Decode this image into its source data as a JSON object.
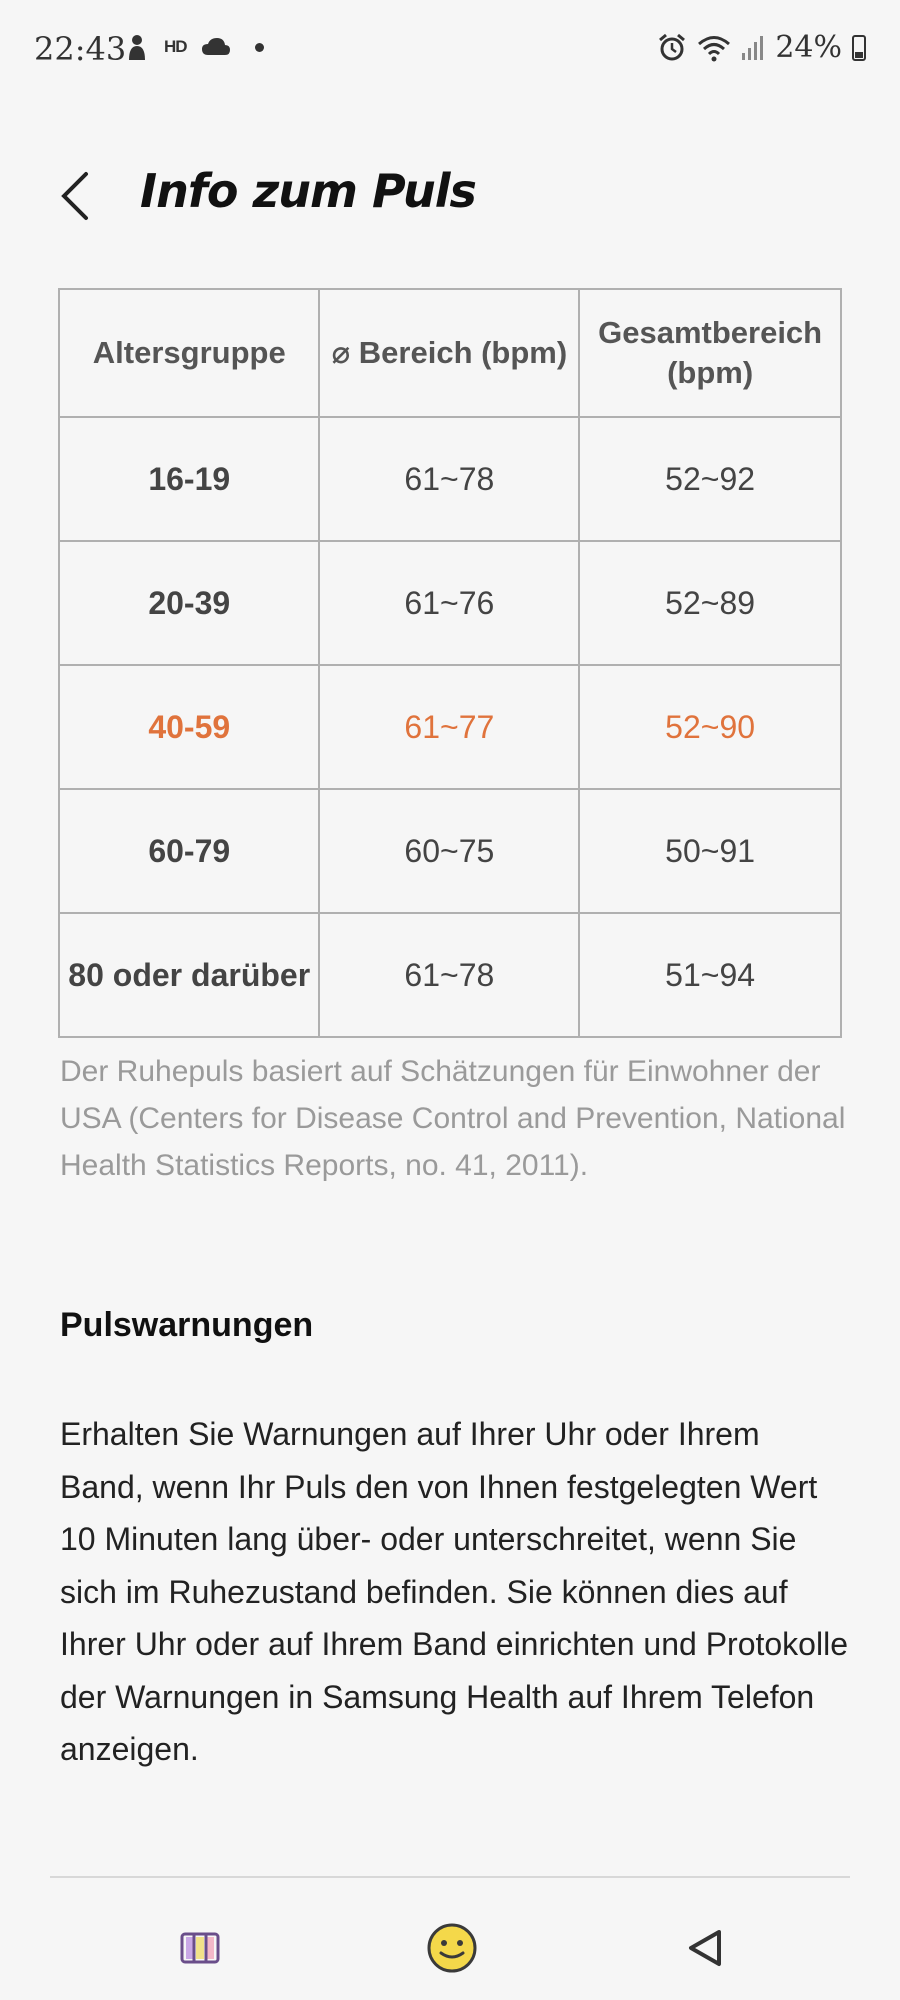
{
  "status_bar": {
    "time": "22:43",
    "hd_label": "HD",
    "battery_percent": "24%"
  },
  "header": {
    "title": "Info zum Puls"
  },
  "table": {
    "headers": [
      "Altersgruppe",
      "⌀ Bereich (bpm)",
      "Gesamtbereich (bpm)"
    ],
    "rows": [
      [
        "16-19",
        "61~78",
        "52~92"
      ],
      [
        "20-39",
        "61~76",
        "52~89"
      ],
      [
        "40-59",
        "61~77",
        "52~90"
      ],
      [
        "60-79",
        "60~75",
        "50~91"
      ],
      [
        "80 oder darüber",
        "61~78",
        "51~94"
      ]
    ],
    "highlight_color": "#e0733c"
  },
  "footnote": "Der Ruhepuls basiert auf Schätzungen für Einwohner der USA (Centers for Disease Control and Prevention, National Health Statistics Reports, no. 41, 2011).",
  "alerts": {
    "title": "Pulswarnungen",
    "body": "Erhalten Sie Warnungen auf Ihrer Uhr oder Ihrem Band, wenn Ihr Puls den von Ihnen festgelegten Wert 10 Minuten lang über- oder unterschreitet, wenn Sie sich im Ruhezustand befinden. Sie können dies auf Ihrer Uhr oder auf Ihrem Band einrichten und Protokolle der Warnungen in Samsung Health auf Ihrem Telefon anzeigen."
  },
  "nav": {
    "icons": [
      "recent-apps-icon",
      "home-icon",
      "back-icon"
    ]
  }
}
